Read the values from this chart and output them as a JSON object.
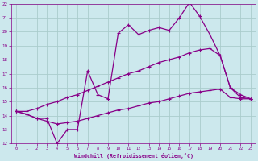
{
  "xlabel": "Windchill (Refroidissement éolien,°C)",
  "background_color": "#cce8ed",
  "grid_color": "#aacccc",
  "line_color": "#880088",
  "xlim": [
    -0.5,
    23.5
  ],
  "ylim": [
    12,
    22
  ],
  "xticks": [
    0,
    1,
    2,
    3,
    4,
    5,
    6,
    7,
    8,
    9,
    10,
    11,
    12,
    13,
    14,
    15,
    16,
    17,
    18,
    19,
    20,
    21,
    22,
    23
  ],
  "yticks": [
    12,
    13,
    14,
    15,
    16,
    17,
    18,
    19,
    20,
    21,
    22
  ],
  "line1_x": [
    0,
    1,
    2,
    3,
    4,
    5,
    6,
    7,
    8,
    9,
    10,
    11,
    12,
    13,
    14,
    15,
    16,
    17,
    18,
    19,
    20,
    21,
    22,
    23
  ],
  "line1_y": [
    14.3,
    14.1,
    13.8,
    13.8,
    12.0,
    13.0,
    13.0,
    17.2,
    15.5,
    15.2,
    19.9,
    20.5,
    19.8,
    20.1,
    20.3,
    20.1,
    21.0,
    22.1,
    21.1,
    19.8,
    18.3,
    16.0,
    15.3,
    15.2
  ],
  "line2_x": [
    0,
    1,
    2,
    3,
    4,
    5,
    6,
    7,
    8,
    9,
    10,
    11,
    12,
    13,
    14,
    15,
    16,
    17,
    18,
    19,
    20,
    21,
    22,
    23
  ],
  "line2_y": [
    14.3,
    14.3,
    14.5,
    14.8,
    15.0,
    15.3,
    15.5,
    15.8,
    16.1,
    16.4,
    16.7,
    17.0,
    17.2,
    17.5,
    17.8,
    18.0,
    18.2,
    18.5,
    18.7,
    18.8,
    18.3,
    16.0,
    15.5,
    15.2
  ],
  "line3_x": [
    0,
    1,
    2,
    3,
    4,
    5,
    6,
    7,
    8,
    9,
    10,
    11,
    12,
    13,
    14,
    15,
    16,
    17,
    18,
    19,
    20,
    21,
    22,
    23
  ],
  "line3_y": [
    14.3,
    14.1,
    13.8,
    13.6,
    13.4,
    13.5,
    13.6,
    13.8,
    14.0,
    14.2,
    14.4,
    14.5,
    14.7,
    14.9,
    15.0,
    15.2,
    15.4,
    15.6,
    15.7,
    15.8,
    15.9,
    15.3,
    15.2,
    15.2
  ]
}
